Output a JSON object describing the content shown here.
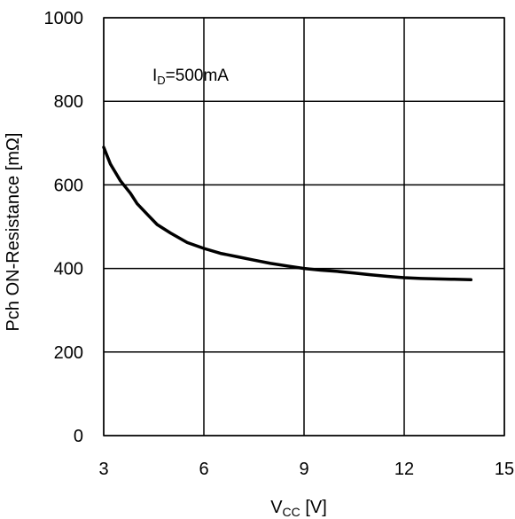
{
  "chart_data": {
    "type": "line",
    "xlabel": {
      "main": "V",
      "sub": "CC",
      "unit": " [V]"
    },
    "ylabel": "Pch ON-Resistance [mΩ]",
    "annotation": {
      "main": "I",
      "sub": "D",
      "rest": "=500mA"
    },
    "xlim": [
      3,
      15
    ],
    "ylim": [
      0,
      1000
    ],
    "xticks": [
      3,
      6,
      9,
      12,
      15
    ],
    "yticks": [
      0,
      200,
      400,
      600,
      800,
      1000
    ],
    "grid": true,
    "series": [
      {
        "x": [
          3.0,
          3.2,
          3.5,
          3.8,
          4.0,
          4.3,
          4.6,
          5.0,
          5.5,
          6.0,
          6.5,
          7.0,
          7.5,
          8.0,
          8.5,
          9.0,
          9.5,
          10.0,
          10.5,
          11.0,
          11.5,
          12.0,
          12.5,
          13.0,
          13.5,
          14.0
        ],
        "y": [
          690,
          650,
          610,
          580,
          555,
          530,
          505,
          485,
          462,
          448,
          436,
          428,
          420,
          412,
          406,
          400,
          396,
          393,
          389,
          385,
          381,
          378,
          376,
          375,
          374,
          373
        ]
      }
    ]
  }
}
